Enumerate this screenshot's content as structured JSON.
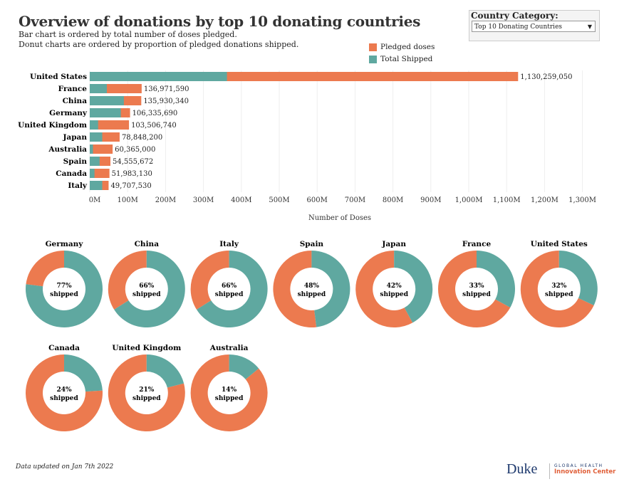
{
  "header": {
    "title": "Overview of donations by top 10 donating countries",
    "subtitle1": "Bar chart is ordered by total number of doses pledged.",
    "subtitle2": "Donut charts are ordered by proportion of pledged donations shipped."
  },
  "filter": {
    "label": "Country Category:",
    "value": "Top 10 Donating Countries"
  },
  "colors": {
    "pledged": "#ec7a4f",
    "shipped": "#5fa8a0"
  },
  "chart_data": [
    {
      "type": "bar",
      "orientation": "horizontal",
      "stacked": false,
      "xlabel": "Number of Doses",
      "xlim": [
        0,
        1300000000
      ],
      "categories": [
        "United States",
        "France",
        "China",
        "Germany",
        "United Kingdom",
        "Japan",
        "Australia",
        "Spain",
        "Canada",
        "Italy"
      ],
      "series": [
        {
          "name": "Pledged doses",
          "values": [
            1130259050,
            136971590,
            135930340,
            106335690,
            103506740,
            78848200,
            60365000,
            54555672,
            51983130,
            49707530
          ]
        },
        {
          "name": "Total Shipped",
          "values": [
            362000000,
            45000000,
            90000000,
            82000000,
            22000000,
            33000000,
            8500000,
            26000000,
            12500000,
            33000000
          ]
        }
      ],
      "data_labels": [
        "1,130,259,050",
        "136,971,590",
        "135,930,340",
        "106,335,690",
        "103,506,740",
        "78,848,200",
        "60,365,000",
        "54,555,672",
        "51,983,130",
        "49,707,530"
      ],
      "ticks": [
        "0M",
        "100M",
        "200M",
        "300M",
        "400M",
        "500M",
        "600M",
        "700M",
        "800M",
        "900M",
        "1,000M",
        "1,100M",
        "1,200M",
        "1,300M"
      ],
      "legend": "top-right",
      "grid": true
    },
    {
      "type": "pie",
      "variant": "donut",
      "categories": [
        "Germany",
        "China",
        "Italy",
        "Spain",
        "Japan",
        "France",
        "United States",
        "Canada",
        "United Kingdom",
        "Australia"
      ],
      "values": [
        77,
        66,
        66,
        48,
        42,
        33,
        32,
        24,
        21,
        14
      ],
      "labels": [
        "77%",
        "66%",
        "66%",
        "48%",
        "42%",
        "33%",
        "32%",
        "24%",
        "21%",
        "14%"
      ],
      "center_suffix": "shipped"
    }
  ],
  "footer": {
    "note": "Data updated on Jan 7th 2022",
    "logo_main": "Duke",
    "logo_top": "GLOBAL HEALTH",
    "logo_bottom": "Innovation Center"
  }
}
